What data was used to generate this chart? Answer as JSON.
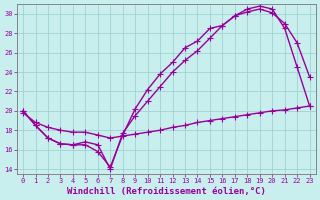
{
  "xlabel": "Windchill (Refroidissement éolien,°C)",
  "bg_color": "#c8eeee",
  "line_color": "#990099",
  "grid_color": "#99cccc",
  "xlim": [
    -0.5,
    23.5
  ],
  "ylim": [
    13.5,
    31.0
  ],
  "xticks": [
    0,
    1,
    2,
    3,
    4,
    5,
    6,
    7,
    8,
    9,
    10,
    11,
    12,
    13,
    14,
    15,
    16,
    17,
    18,
    19,
    20,
    21,
    22,
    23
  ],
  "yticks": [
    14,
    16,
    18,
    20,
    22,
    24,
    26,
    28,
    30
  ],
  "line1_x": [
    0,
    1,
    2,
    3,
    4,
    5,
    6,
    7,
    8,
    9,
    10,
    11,
    12,
    13,
    14,
    15,
    16,
    17,
    18,
    19,
    20,
    21,
    22,
    23
  ],
  "line1_y": [
    20.0,
    18.5,
    17.2,
    16.6,
    16.5,
    16.5,
    15.8,
    14.2,
    17.5,
    20.2,
    22.2,
    23.8,
    25.0,
    26.5,
    27.2,
    28.5,
    28.8,
    29.8,
    30.2,
    30.5,
    30.1,
    29.0,
    27.0,
    23.5
  ],
  "line2_x": [
    0,
    1,
    2,
    3,
    4,
    5,
    6,
    7,
    8,
    9,
    10,
    11,
    12,
    13,
    14,
    15,
    16,
    17,
    18,
    19,
    20,
    21,
    22,
    23
  ],
  "line2_y": [
    20.0,
    18.5,
    17.2,
    16.6,
    16.5,
    16.8,
    16.5,
    14.0,
    17.7,
    19.5,
    21.0,
    22.5,
    24.0,
    25.2,
    26.2,
    27.5,
    28.8,
    29.8,
    30.5,
    30.8,
    30.5,
    28.5,
    24.5,
    20.5
  ],
  "line3_x": [
    0,
    1,
    2,
    3,
    4,
    5,
    6,
    7,
    8,
    9,
    10,
    11,
    12,
    13,
    14,
    15,
    16,
    17,
    18,
    19,
    20,
    21,
    22,
    23
  ],
  "line3_y": [
    19.8,
    18.8,
    18.3,
    18.0,
    17.8,
    17.8,
    17.5,
    17.2,
    17.4,
    17.6,
    17.8,
    18.0,
    18.3,
    18.5,
    18.8,
    19.0,
    19.2,
    19.4,
    19.6,
    19.8,
    20.0,
    20.1,
    20.3,
    20.5
  ],
  "marker": "P",
  "markersize": 3,
  "linewidth": 1.0,
  "tick_fontsize": 5.0,
  "xlabel_fontsize": 6.5
}
